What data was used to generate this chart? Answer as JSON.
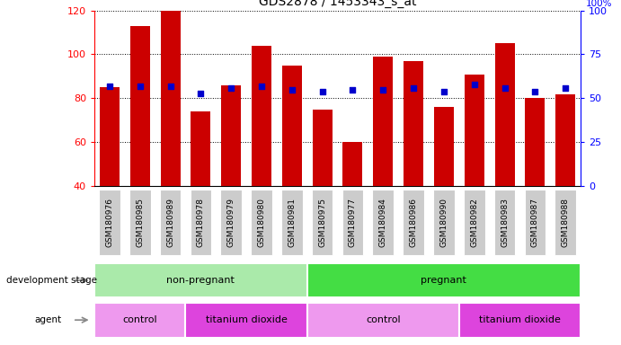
{
  "title": "GDS2878 / 1453343_s_at",
  "samples": [
    "GSM180976",
    "GSM180985",
    "GSM180989",
    "GSM180978",
    "GSM180979",
    "GSM180980",
    "GSM180981",
    "GSM180975",
    "GSM180977",
    "GSM180984",
    "GSM180986",
    "GSM180990",
    "GSM180982",
    "GSM180983",
    "GSM180987",
    "GSM180988"
  ],
  "counts": [
    85,
    113,
    120,
    74,
    86,
    104,
    95,
    75,
    60,
    99,
    97,
    76,
    91,
    105,
    80,
    82
  ],
  "percentiles": [
    57,
    57,
    57,
    53,
    56,
    57,
    55,
    54,
    55,
    55,
    56,
    54,
    58,
    56,
    54,
    56
  ],
  "bar_color": "#cc0000",
  "dot_color": "#0000cc",
  "ylim_left": [
    40,
    120
  ],
  "ylim_right": [
    0,
    100
  ],
  "yticks_left": [
    40,
    60,
    80,
    100,
    120
  ],
  "yticks_right": [
    0,
    25,
    50,
    75,
    100
  ],
  "development_stage_groups": [
    {
      "label": "non-pregnant",
      "start": 0,
      "end": 7,
      "color": "#aaeaaa"
    },
    {
      "label": "pregnant",
      "start": 7,
      "end": 16,
      "color": "#44dd44"
    }
  ],
  "agent_groups": [
    {
      "label": "control",
      "start": 0,
      "end": 3,
      "color": "#ee99ee"
    },
    {
      "label": "titanium dioxide",
      "start": 3,
      "end": 7,
      "color": "#dd44dd"
    },
    {
      "label": "control",
      "start": 7,
      "end": 12,
      "color": "#ee99ee"
    },
    {
      "label": "titanium dioxide",
      "start": 12,
      "end": 16,
      "color": "#dd44dd"
    }
  ],
  "legend_count_color": "#cc0000",
  "legend_dot_color": "#0000cc",
  "xticklabel_bg": "#cccccc"
}
